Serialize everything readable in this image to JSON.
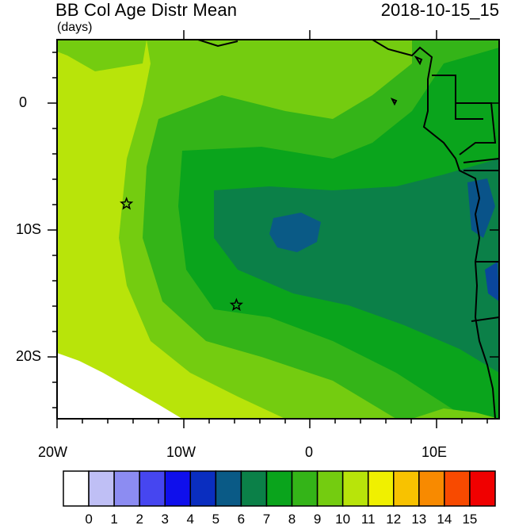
{
  "title": {
    "main": "BB Col Age Distr Mean",
    "units": "(days)",
    "date": "2018-10-15_15"
  },
  "axes": {
    "lat_labels": [
      "0",
      "10S",
      "20S"
    ],
    "lon_labels": [
      "20W",
      "10W",
      "0",
      "10E"
    ],
    "lon_range": [
      -20,
      15
    ],
    "lat_range": [
      -25,
      5
    ]
  },
  "colorbar": {
    "labels": [
      "0",
      "1",
      "2",
      "3",
      "4",
      "5",
      "6",
      "7",
      "8",
      "9",
      "10",
      "11",
      "12",
      "13",
      "14",
      "15"
    ],
    "colors": [
      "#ffffff",
      "#bfbff5",
      "#8c8cf2",
      "#4646f0",
      "#0f0fec",
      "#0a2ec0",
      "#0a5a86",
      "#0b8048",
      "#0aa41c",
      "#34b418",
      "#74cc10",
      "#b8e40a",
      "#f0f000",
      "#f8c200",
      "#f88a00",
      "#f84a00",
      "#f00000"
    ]
  },
  "markers": [
    {
      "name": "star-1",
      "lon": -14.5,
      "lat": -8
    },
    {
      "name": "star-2",
      "lon": -5.8,
      "lat": -16
    }
  ]
}
